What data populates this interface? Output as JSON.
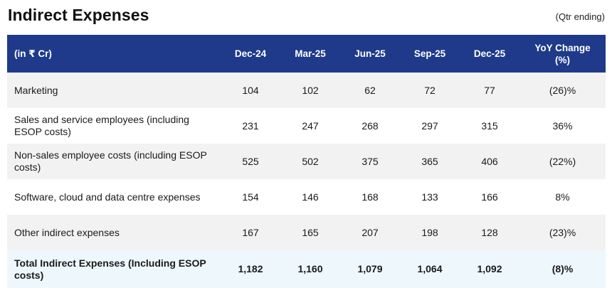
{
  "title": "Indirect Expenses",
  "subtitle": "(Qtr ending)",
  "table": {
    "unit_label": "(in ₹ Cr)",
    "columns": [
      "Dec-24",
      "Mar-25",
      "Jun-25",
      "Sep-25",
      "Dec-25"
    ],
    "yoy_label": "YoY Change",
    "yoy_unit": "(%)",
    "rows": [
      {
        "label": "Marketing",
        "values": [
          "104",
          "102",
          "62",
          "72",
          "77"
        ],
        "yoy": "(26)%"
      },
      {
        "label": "Sales and service employees (including ESOP costs)",
        "values": [
          "231",
          "247",
          "268",
          "297",
          "315"
        ],
        "yoy": "36%"
      },
      {
        "label": "Non-sales employee costs (including ESOP costs)",
        "values": [
          "525",
          "502",
          "375",
          "365",
          "406"
        ],
        "yoy": "(22%)"
      },
      {
        "label": "Software, cloud and data centre expenses",
        "values": [
          "154",
          "146",
          "168",
          "133",
          "166"
        ],
        "yoy": "8%"
      },
      {
        "label": "Other indirect expenses",
        "values": [
          "167",
          "165",
          "207",
          "198",
          "128"
        ],
        "yoy": "(23)%"
      }
    ],
    "total": {
      "label": "Total Indirect Expenses (Including ESOP costs)",
      "values": [
        "1,182",
        "1,160",
        "1,079",
        "1,064",
        "1,092"
      ],
      "yoy": "(8)%"
    }
  }
}
